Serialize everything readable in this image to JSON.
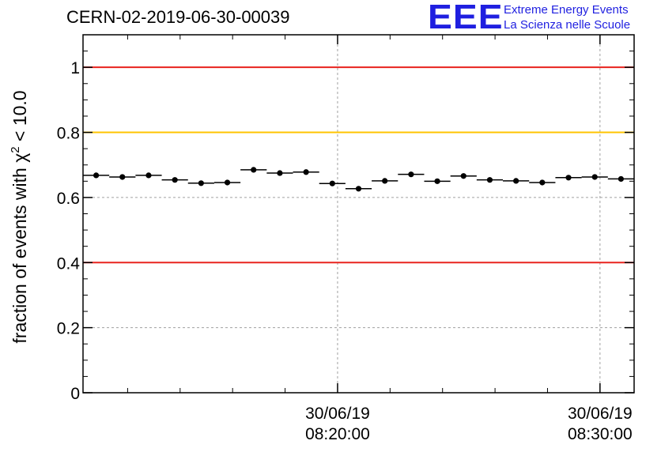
{
  "header": {
    "title": "CERN-02-2019-06-30-00039",
    "logo_mark": "EEE",
    "logo_line1": "Extreme Energy Events",
    "logo_line2": "La Scienza nelle Scuole"
  },
  "colors": {
    "logo": "#1f1fe0",
    "threshold_red": "#e8231e",
    "threshold_yellow": "#ffc400",
    "points": "#000000",
    "grid": "#a0a0a0"
  },
  "chart_data": {
    "type": "scatter",
    "title": "CERN-02-2019-06-30-00039",
    "ylabel_prefix": "fraction of events with χ",
    "ylabel_sup": "2",
    "ylabel_suffix": " < 10.0",
    "ylim": [
      0,
      1.1
    ],
    "yticks": [
      0,
      0.2,
      0.4,
      0.6,
      0.8,
      1
    ],
    "ytick_labels": [
      "0",
      "0.2",
      "0.4",
      "0.6",
      "0.8",
      "1"
    ],
    "xlim_minutes": [
      0,
      21
    ],
    "xticks": [
      {
        "minute": 9.7,
        "date": "30/06/19",
        "time": "08:20:00"
      },
      {
        "minute": 19.7,
        "date": "30/06/19",
        "time": "08:30:00"
      }
    ],
    "grid": true,
    "threshold_lines": [
      {
        "y": 1.0,
        "color": "red"
      },
      {
        "y": 0.8,
        "color": "yellow"
      },
      {
        "y": 0.4,
        "color": "red"
      }
    ],
    "bin_width_minutes": 1,
    "points_x_minutes": [
      0.5,
      1.5,
      2.5,
      3.5,
      4.5,
      5.5,
      6.5,
      7.5,
      8.5,
      9.5,
      10.5,
      11.5,
      12.5,
      13.5,
      14.5,
      15.5,
      16.5,
      17.5,
      18.5,
      19.5,
      20.5
    ],
    "values": [
      0.668,
      0.663,
      0.668,
      0.654,
      0.644,
      0.646,
      0.685,
      0.675,
      0.678,
      0.643,
      0.627,
      0.651,
      0.671,
      0.65,
      0.666,
      0.654,
      0.651,
      0.646,
      0.661,
      0.663,
      0.657
    ],
    "errors": [
      0.008,
      0.008,
      0.008,
      0.008,
      0.008,
      0.008,
      0.008,
      0.008,
      0.008,
      0.008,
      0.008,
      0.008,
      0.008,
      0.008,
      0.008,
      0.008,
      0.008,
      0.008,
      0.008,
      0.008,
      0.008
    ]
  }
}
